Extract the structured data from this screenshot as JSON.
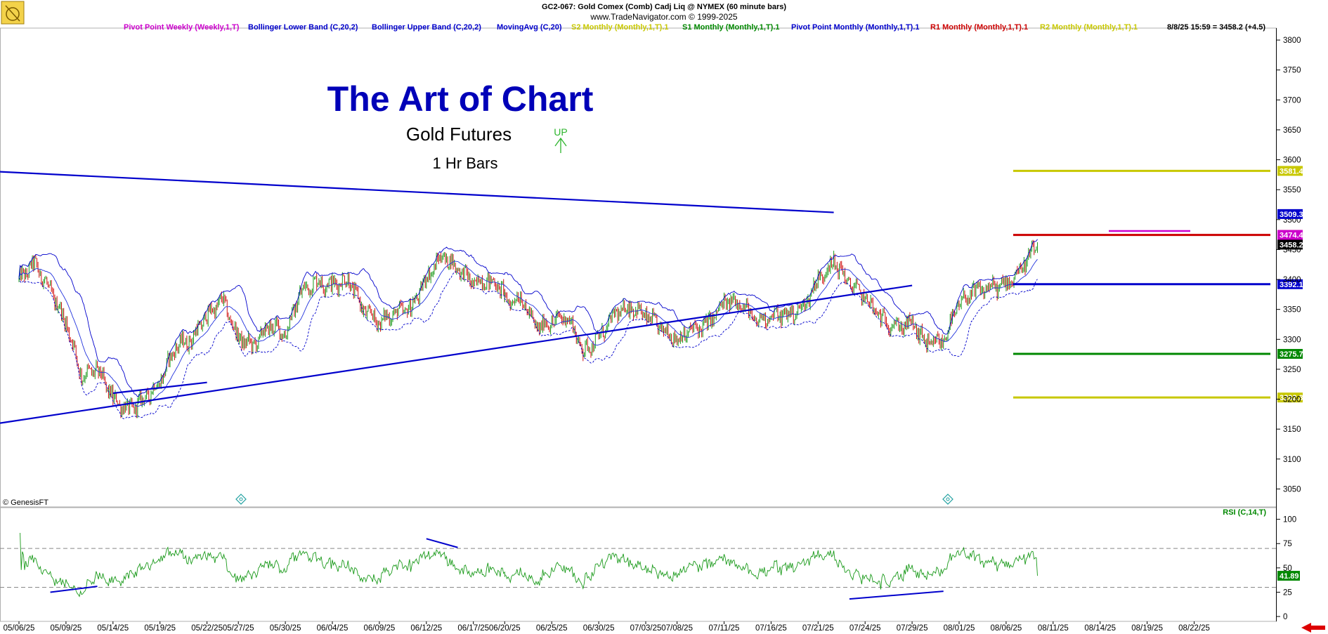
{
  "header": {
    "title_line1": "GC2-067:  Gold Comex (Comb) Cadj Liq @ NYMEX  (60 minute bars)",
    "title_line2": "www.TradeNavigator.com © 1999-2025",
    "status": "8/8/25 15:59 = 3458.2 (+4.5)"
  },
  "legend": [
    {
      "label": "Pivot Point Weekly (Weekly,1,T)",
      "color": "#cc00cc"
    },
    {
      "label": "Bollinger Lower Band (C,20,2)",
      "color": "#0000cc"
    },
    {
      "label": "Bollinger Upper Band (C,20,2)",
      "color": "#0000cc"
    },
    {
      "label": "MovingAvg (C,20)",
      "color": "#0000cc"
    },
    {
      "label": "S2 Monthly (Monthly,1,T).1",
      "color": "#c8c800"
    },
    {
      "label": "S1 Monthly (Monthly,1,T).1",
      "color": "#008800"
    },
    {
      "label": "Pivot Point Monthly (Monthly,1,T).1",
      "color": "#0000cc"
    },
    {
      "label": "R1 Monthly (Monthly,1,T).1",
      "color": "#cc0000"
    },
    {
      "label": "R2 Monthly (Monthly,1,T).1",
      "color": "#c8c800"
    }
  ],
  "annotations": {
    "headline": "The Art of Chart",
    "subtitle": "Gold Futures",
    "timeframe": "1 Hr Bars",
    "signal": "UP",
    "copyright": "© GenesisFT",
    "rsi_label": "RSI (C,14,T)"
  },
  "chart_data": [
    {
      "type": "candlestick",
      "title": "GC2-067:  Gold Comex (Comb) Cadj Liq @ NYMEX  (60 minute bars)",
      "ylim": [
        3020,
        3820
      ],
      "y_ticks": [
        3050,
        3100,
        3150,
        3200,
        3250,
        3300,
        3350,
        3400,
        3450,
        3500,
        3550,
        3600,
        3650,
        3700,
        3750,
        3800
      ],
      "x_ticks": [
        "05/06/25",
        "05/09/25",
        "05/14/25",
        "05/19/25",
        "05/22/25",
        "05/27/25",
        "05/30/25",
        "06/04/25",
        "06/09/25",
        "06/12/25",
        "06/17/25",
        "06/20/25",
        "06/25/25",
        "06/30/25",
        "07/03/25",
        "07/08/25",
        "07/11/25",
        "07/16/25",
        "07/21/25",
        "07/24/25",
        "07/29/25",
        "08/01/25",
        "08/06/25",
        "08/11/25",
        "08/14/25",
        "08/19/25",
        "08/22/25"
      ],
      "close_path": [
        [
          "05/06/25",
          3400
        ],
        [
          "05/07/25",
          3425
        ],
        [
          "05/08/25",
          3380
        ],
        [
          "05/09/25",
          3330
        ],
        [
          "05/12/25",
          3240
        ],
        [
          "05/13/25",
          3250
        ],
        [
          "05/14/25",
          3200
        ],
        [
          "05/15/25",
          3180
        ],
        [
          "05/16/25",
          3200
        ],
        [
          "05/19/25",
          3230
        ],
        [
          "05/20/25",
          3290
        ],
        [
          "05/21/25",
          3300
        ],
        [
          "05/22/25",
          3340
        ],
        [
          "05/23/25",
          3365
        ],
        [
          "05/27/25",
          3300
        ],
        [
          "05/28/25",
          3290
        ],
        [
          "05/29/25",
          3325
        ],
        [
          "05/30/25",
          3310
        ],
        [
          "06/02/25",
          3380
        ],
        [
          "06/03/25",
          3395
        ],
        [
          "06/04/25",
          3390
        ],
        [
          "06/05/25",
          3400
        ],
        [
          "06/06/25",
          3350
        ],
        [
          "06/09/25",
          3330
        ],
        [
          "06/10/25",
          3345
        ],
        [
          "06/11/25",
          3350
        ],
        [
          "06/12/25",
          3400
        ],
        [
          "06/13/25",
          3440
        ],
        [
          "06/16/25",
          3420
        ],
        [
          "06/17/25",
          3395
        ],
        [
          "06/18/25",
          3400
        ],
        [
          "06/19/25",
          3380
        ],
        [
          "06/20/25",
          3360
        ],
        [
          "06/23/25",
          3370
        ],
        [
          "06/24/25",
          3320
        ],
        [
          "06/25/25",
          3330
        ],
        [
          "06/26/25",
          3340
        ],
        [
          "06/27/25",
          3280
        ],
        [
          "06/30/25",
          3300
        ],
        [
          "07/01/25",
          3340
        ],
        [
          "07/02/25",
          3355
        ],
        [
          "07/03/25",
          3340
        ],
        [
          "07/07/25",
          3320
        ],
        [
          "07/08/25",
          3300
        ],
        [
          "07/09/25",
          3315
        ],
        [
          "07/10/25",
          3325
        ],
        [
          "07/11/25",
          3360
        ],
        [
          "07/14/25",
          3365
        ],
        [
          "07/15/25",
          3330
        ],
        [
          "07/16/25",
          3340
        ],
        [
          "07/17/25",
          3340
        ],
        [
          "07/18/25",
          3350
        ],
        [
          "07/21/25",
          3400
        ],
        [
          "07/22/25",
          3430
        ],
        [
          "07/23/25",
          3395
        ],
        [
          "07/24/25",
          3370
        ],
        [
          "07/25/25",
          3335
        ],
        [
          "07/28/25",
          3320
        ],
        [
          "07/29/25",
          3325
        ],
        [
          "07/30/25",
          3290
        ],
        [
          "07/31/25",
          3300
        ],
        [
          "08/01/25",
          3360
        ],
        [
          "08/04/25",
          3380
        ],
        [
          "08/05/25",
          3385
        ],
        [
          "08/06/25",
          3390
        ],
        [
          "08/07/25",
          3420
        ],
        [
          "08/08/25",
          3458.2
        ]
      ],
      "trendlines": [
        {
          "from": [
            "05/06/25",
            3580
          ],
          "to": [
            "07/22/25",
            3512
          ],
          "color": "#0000cc"
        },
        {
          "from": [
            "05/06/25",
            3160
          ],
          "to": [
            "07/29/25",
            3390
          ],
          "color": "#0000cc"
        },
        {
          "from": [
            "05/14/25",
            3210
          ],
          "to": [
            "05/22/25",
            3228
          ],
          "color": "#0000cc"
        }
      ],
      "levels": [
        {
          "label": "R2 Monthly",
          "value": 3581.4,
          "text": "3581.4",
          "color": "#c8c800"
        },
        {
          "label": "R1 Monthly",
          "value": 3474.4,
          "text": "3474.4",
          "color": "#cc0000"
        },
        {
          "label": "Pivot Point Monthly",
          "value": 3392.1,
          "text": "3392.1",
          "color": "#0000cc"
        },
        {
          "label": "S1 Monthly",
          "value": 3275.7,
          "text": "3275.7",
          "color": "#008800"
        },
        {
          "label": "S2 Monthly",
          "value": 3202.8,
          "text": "3202.8",
          "color": "#c8c800"
        },
        {
          "label": "Pivot Point Weekly",
          "value": 3481,
          "text": "",
          "color": "#cc00cc"
        }
      ],
      "price_boxes": [
        {
          "text": "3509.3",
          "value": 3509.3,
          "bg": "#0000cc",
          "fg": "#ffffff"
        },
        {
          "text": "3474.4",
          "value": 3474.4,
          "bg": "#cc00cc",
          "fg": "#ffffff"
        },
        {
          "text": "3458.2",
          "value": 3458.2,
          "bg": "#000000",
          "fg": "#ffffff"
        }
      ]
    },
    {
      "type": "line",
      "title": "RSI (C,14,T)",
      "ylim": [
        -5,
        112
      ],
      "y_ticks": [
        0,
        25,
        50,
        75,
        100
      ],
      "reference_lines": [
        70,
        30
      ],
      "last_value": 41.89,
      "last_text": "41.89",
      "trendlines": [
        {
          "from": [
            "05/08/25",
            25
          ],
          "to": [
            "05/13/25",
            31
          ]
        },
        {
          "from": [
            "06/12/25",
            80
          ],
          "to": [
            "06/16/25",
            71
          ]
        },
        {
          "from": [
            "07/23/25",
            18
          ],
          "to": [
            "07/31/25",
            26
          ]
        }
      ]
    }
  ]
}
